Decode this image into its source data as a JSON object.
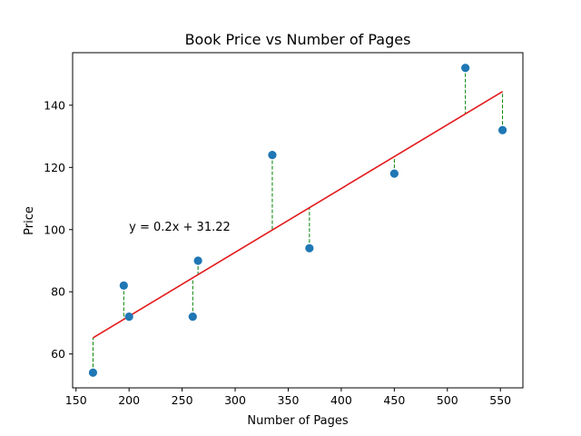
{
  "chart_data": {
    "type": "scatter",
    "title": "Book Price vs Number of Pages",
    "xlabel": "Number of Pages",
    "ylabel": "Price",
    "xlim": [
      146.8,
      571.2
    ],
    "ylim": [
      49.1,
      156.9
    ],
    "x_ticks": [
      150,
      200,
      250,
      300,
      350,
      400,
      450,
      500,
      550
    ],
    "y_ticks": [
      60,
      80,
      100,
      120,
      140
    ],
    "x_tick_labels": [
      "150",
      "200",
      "250",
      "300",
      "350",
      "400",
      "450",
      "500",
      "550"
    ],
    "y_tick_labels": [
      "60",
      "80",
      "100",
      "120",
      "140"
    ],
    "points": [
      {
        "x": 166,
        "y": 54
      },
      {
        "x": 195,
        "y": 82
      },
      {
        "x": 200,
        "y": 72
      },
      {
        "x": 260,
        "y": 72
      },
      {
        "x": 265,
        "y": 90
      },
      {
        "x": 335,
        "y": 124
      },
      {
        "x": 370,
        "y": 94
      },
      {
        "x": 450,
        "y": 118
      },
      {
        "x": 517,
        "y": 152
      },
      {
        "x": 552,
        "y": 132
      }
    ],
    "regression": {
      "x_range": [
        166,
        552
      ],
      "y_range": [
        65.2,
        144.4
      ],
      "equation_label": "y = 0.2x + 31.22",
      "label_at": {
        "x": 200,
        "y": 100
      }
    },
    "colors": {
      "points": "#1f77b4",
      "regression_line": "#e31a1c",
      "residuals": "#008000"
    },
    "grid": false,
    "legend": "none"
  }
}
